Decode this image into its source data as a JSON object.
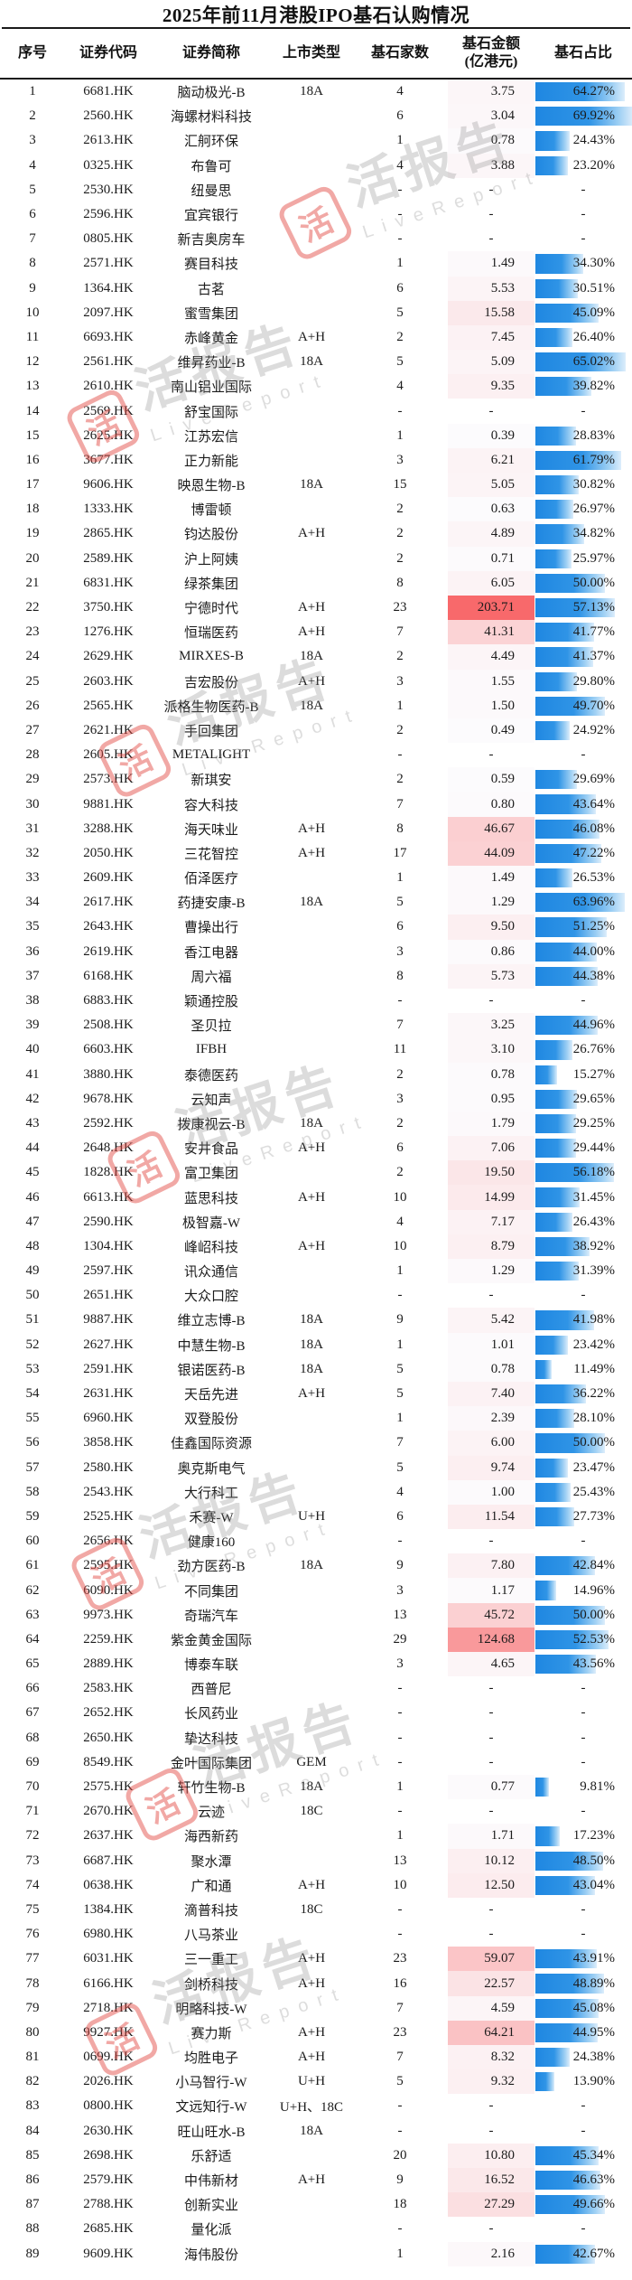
{
  "title": "2025年前11月港股IPO基石认购情况",
  "columns": {
    "seq": "序号",
    "code": "证券代码",
    "name": "证券简称",
    "type": "上市类型",
    "count": "基石家数",
    "amount_line1": "基石金额",
    "amount_line2": "(亿港元)",
    "pct": "基石占比"
  },
  "watermark": {
    "logo_char": "活",
    "text": "活报告",
    "subtext": "LiveReport"
  },
  "colors": {
    "bar_blue": "#1f87e1",
    "bar_blue_light": "#dcedfb",
    "heat_red_max": "#f8696b",
    "heat_white_min": "#fcfcfe",
    "rule_black": "#1a1a1a"
  },
  "scales": {
    "amount_max": 203.71,
    "pct_full_bar": 69.92,
    "heat_exponent": 0.8
  },
  "rows": [
    [
      "1",
      "6681.HK",
      "脑动极光-B",
      "18A",
      "4",
      "3.75",
      "64.27%"
    ],
    [
      "2",
      "2560.HK",
      "海螺材料科技",
      "",
      "6",
      "3.04",
      "69.92%"
    ],
    [
      "3",
      "2613.HK",
      "汇舸环保",
      "",
      "1",
      "0.78",
      "24.43%"
    ],
    [
      "4",
      "0325.HK",
      "布鲁可",
      "",
      "4",
      "3.88",
      "23.20%"
    ],
    [
      "5",
      "2530.HK",
      "纽曼思",
      "",
      "-",
      "-",
      "-"
    ],
    [
      "6",
      "2596.HK",
      "宜宾银行",
      "",
      "-",
      "-",
      "-"
    ],
    [
      "7",
      "0805.HK",
      "新吉奥房车",
      "",
      "-",
      "-",
      "-"
    ],
    [
      "8",
      "2571.HK",
      "赛目科技",
      "",
      "1",
      "1.49",
      "34.30%"
    ],
    [
      "9",
      "1364.HK",
      "古茗",
      "",
      "6",
      "5.53",
      "30.51%"
    ],
    [
      "10",
      "2097.HK",
      "蜜雪集团",
      "",
      "5",
      "15.58",
      "45.09%"
    ],
    [
      "11",
      "6693.HK",
      "赤峰黄金",
      "A+H",
      "2",
      "7.45",
      "26.40%"
    ],
    [
      "12",
      "2561.HK",
      "维昇药业-B",
      "18A",
      "5",
      "5.09",
      "65.02%"
    ],
    [
      "13",
      "2610.HK",
      "南山铝业国际",
      "",
      "4",
      "9.35",
      "39.82%"
    ],
    [
      "14",
      "2569.HK",
      "舒宝国际",
      "",
      "-",
      "-",
      "-"
    ],
    [
      "15",
      "2625.HK",
      "江苏宏信",
      "",
      "1",
      "0.39",
      "28.83%"
    ],
    [
      "16",
      "3677.HK",
      "正力新能",
      "",
      "3",
      "6.21",
      "61.79%"
    ],
    [
      "17",
      "9606.HK",
      "映恩生物-B",
      "18A",
      "15",
      "5.05",
      "30.82%"
    ],
    [
      "18",
      "1333.HK",
      "博雷顿",
      "",
      "2",
      "0.63",
      "26.97%"
    ],
    [
      "19",
      "2865.HK",
      "钧达股份",
      "A+H",
      "2",
      "4.89",
      "34.82%"
    ],
    [
      "20",
      "2589.HK",
      "沪上阿姨",
      "",
      "2",
      "0.71",
      "25.97%"
    ],
    [
      "21",
      "6831.HK",
      "绿茶集团",
      "",
      "8",
      "6.05",
      "50.00%"
    ],
    [
      "22",
      "3750.HK",
      "宁德时代",
      "A+H",
      "23",
      "203.71",
      "57.13%"
    ],
    [
      "23",
      "1276.HK",
      "恒瑞医药",
      "A+H",
      "7",
      "41.31",
      "41.77%"
    ],
    [
      "24",
      "2629.HK",
      "MIRXES-B",
      "18A",
      "2",
      "4.49",
      "41.37%"
    ],
    [
      "25",
      "2603.HK",
      "吉宏股份",
      "A+H",
      "3",
      "1.55",
      "29.80%"
    ],
    [
      "26",
      "2565.HK",
      "派格生物医药-B",
      "18A",
      "1",
      "1.50",
      "49.70%"
    ],
    [
      "27",
      "2621.HK",
      "手回集团",
      "",
      "2",
      "0.49",
      "24.92%"
    ],
    [
      "28",
      "2605.HK",
      "METALIGHT",
      "",
      "-",
      "-",
      "-"
    ],
    [
      "29",
      "2573.HK",
      "新琪安",
      "",
      "2",
      "0.59",
      "29.69%"
    ],
    [
      "30",
      "9881.HK",
      "容大科技",
      "",
      "7",
      "0.80",
      "43.64%"
    ],
    [
      "31",
      "3288.HK",
      "海天味业",
      "A+H",
      "8",
      "46.67",
      "46.08%"
    ],
    [
      "32",
      "2050.HK",
      "三花智控",
      "A+H",
      "17",
      "44.09",
      "47.22%"
    ],
    [
      "33",
      "2609.HK",
      "佰泽医疗",
      "",
      "1",
      "1.49",
      "26.53%"
    ],
    [
      "34",
      "2617.HK",
      "药捷安康-B",
      "18A",
      "5",
      "1.29",
      "63.96%"
    ],
    [
      "35",
      "2643.HK",
      "曹操出行",
      "",
      "6",
      "9.50",
      "51.25%"
    ],
    [
      "36",
      "2619.HK",
      "香江电器",
      "",
      "3",
      "0.86",
      "44.00%"
    ],
    [
      "37",
      "6168.HK",
      "周六福",
      "",
      "8",
      "5.73",
      "44.38%"
    ],
    [
      "38",
      "6883.HK",
      "颖通控股",
      "",
      "-",
      "-",
      "-"
    ],
    [
      "39",
      "2508.HK",
      "圣贝拉",
      "",
      "7",
      "3.25",
      "44.96%"
    ],
    [
      "40",
      "6603.HK",
      "IFBH",
      "",
      "11",
      "3.10",
      "26.76%"
    ],
    [
      "41",
      "3880.HK",
      "泰德医药",
      "",
      "2",
      "0.78",
      "15.27%"
    ],
    [
      "42",
      "9678.HK",
      "云知声",
      "",
      "3",
      "0.95",
      "29.65%"
    ],
    [
      "43",
      "2592.HK",
      "拨康视云-B",
      "18A",
      "2",
      "1.79",
      "29.25%"
    ],
    [
      "44",
      "2648.HK",
      "安井食品",
      "A+H",
      "6",
      "7.06",
      "29.44%"
    ],
    [
      "45",
      "1828.HK",
      "富卫集团",
      "",
      "2",
      "19.50",
      "56.18%"
    ],
    [
      "46",
      "6613.HK",
      "蓝思科技",
      "A+H",
      "10",
      "14.99",
      "31.45%"
    ],
    [
      "47",
      "2590.HK",
      "极智嘉-W",
      "",
      "4",
      "7.17",
      "26.43%"
    ],
    [
      "48",
      "1304.HK",
      "峰岹科技",
      "A+H",
      "10",
      "8.79",
      "38.92%"
    ],
    [
      "49",
      "2597.HK",
      "讯众通信",
      "",
      "1",
      "1.29",
      "31.39%"
    ],
    [
      "50",
      "2651.HK",
      "大众口腔",
      "",
      "-",
      "-",
      "-"
    ],
    [
      "51",
      "9887.HK",
      "维立志博-B",
      "18A",
      "9",
      "5.42",
      "41.98%"
    ],
    [
      "52",
      "2627.HK",
      "中慧生物-B",
      "18A",
      "1",
      "1.01",
      "23.42%"
    ],
    [
      "53",
      "2591.HK",
      "银诺医药-B",
      "18A",
      "5",
      "0.78",
      "11.49%"
    ],
    [
      "54",
      "2631.HK",
      "天岳先进",
      "A+H",
      "5",
      "7.40",
      "36.22%"
    ],
    [
      "55",
      "6960.HK",
      "双登股份",
      "",
      "1",
      "2.39",
      "28.10%"
    ],
    [
      "56",
      "3858.HK",
      "佳鑫国际资源",
      "",
      "7",
      "6.00",
      "50.00%"
    ],
    [
      "57",
      "2580.HK",
      "奥克斯电气",
      "",
      "5",
      "9.74",
      "23.47%"
    ],
    [
      "58",
      "2543.HK",
      "大行科工",
      "",
      "4",
      "1.00",
      "25.43%"
    ],
    [
      "59",
      "2525.HK",
      "禾赛-W",
      "U+H",
      "6",
      "11.54",
      "27.73%"
    ],
    [
      "60",
      "2656.HK",
      "健康160",
      "",
      "-",
      "-",
      "-"
    ],
    [
      "61",
      "2595.HK",
      "劲方医药-B",
      "18A",
      "9",
      "7.80",
      "42.84%"
    ],
    [
      "62",
      "6090.HK",
      "不同集团",
      "",
      "3",
      "1.17",
      "14.96%"
    ],
    [
      "63",
      "9973.HK",
      "奇瑞汽车",
      "",
      "13",
      "45.72",
      "50.00%"
    ],
    [
      "64",
      "2259.HK",
      "紫金黄金国际",
      "",
      "29",
      "124.68",
      "52.53%"
    ],
    [
      "65",
      "2889.HK",
      "博泰车联",
      "",
      "3",
      "4.65",
      "43.56%"
    ],
    [
      "66",
      "2583.HK",
      "西普尼",
      "",
      "-",
      "-",
      "-"
    ],
    [
      "67",
      "2652.HK",
      "长风药业",
      "",
      "-",
      "-",
      "-"
    ],
    [
      "68",
      "2650.HK",
      "挚达科技",
      "",
      "-",
      "-",
      "-"
    ],
    [
      "69",
      "8549.HK",
      "金叶国际集团",
      "GEM",
      "-",
      "-",
      "-"
    ],
    [
      "70",
      "2575.HK",
      "轩竹生物-B",
      "18A",
      "1",
      "0.77",
      "9.81%"
    ],
    [
      "71",
      "2670.HK",
      "云迹",
      "18C",
      "-",
      "-",
      "-"
    ],
    [
      "72",
      "2637.HK",
      "海西新药",
      "",
      "1",
      "1.71",
      "17.23%"
    ],
    [
      "73",
      "6687.HK",
      "聚水潭",
      "",
      "13",
      "10.12",
      "48.50%"
    ],
    [
      "74",
      "0638.HK",
      "广和通",
      "A+H",
      "10",
      "12.50",
      "43.04%"
    ],
    [
      "75",
      "1384.HK",
      "滴普科技",
      "18C",
      "-",
      "-",
      "-"
    ],
    [
      "76",
      "6980.HK",
      "八马茶业",
      "",
      "-",
      "-",
      "-"
    ],
    [
      "77",
      "6031.HK",
      "三一重工",
      "A+H",
      "23",
      "59.07",
      "43.91%"
    ],
    [
      "78",
      "6166.HK",
      "剑桥科技",
      "A+H",
      "16",
      "22.57",
      "48.89%"
    ],
    [
      "79",
      "2718.HK",
      "明略科技-W",
      "",
      "7",
      "4.59",
      "45.08%"
    ],
    [
      "80",
      "9927.HK",
      "赛力斯",
      "A+H",
      "23",
      "64.21",
      "44.95%"
    ],
    [
      "81",
      "0699.HK",
      "均胜电子",
      "A+H",
      "7",
      "8.32",
      "24.38%"
    ],
    [
      "82",
      "2026.HK",
      "小马智行-W",
      "U+H",
      "5",
      "9.32",
      "13.90%"
    ],
    [
      "83",
      "0800.HK",
      "文远知行-W",
      "U+H、18C",
      "-",
      "-",
      "-"
    ],
    [
      "84",
      "2630.HK",
      "旺山旺水-B",
      "18A",
      "-",
      "-",
      "-"
    ],
    [
      "85",
      "2698.HK",
      "乐舒适",
      "",
      "20",
      "10.80",
      "45.34%"
    ],
    [
      "86",
      "2579.HK",
      "中伟新材",
      "A+H",
      "9",
      "16.52",
      "46.63%"
    ],
    [
      "87",
      "2788.HK",
      "创新实业",
      "",
      "18",
      "27.29",
      "49.66%"
    ],
    [
      "88",
      "2685.HK",
      "量化派",
      "",
      "-",
      "-",
      "-"
    ],
    [
      "89",
      "9609.HK",
      "海伟股份",
      "",
      "1",
      "2.16",
      "42.67%"
    ]
  ]
}
